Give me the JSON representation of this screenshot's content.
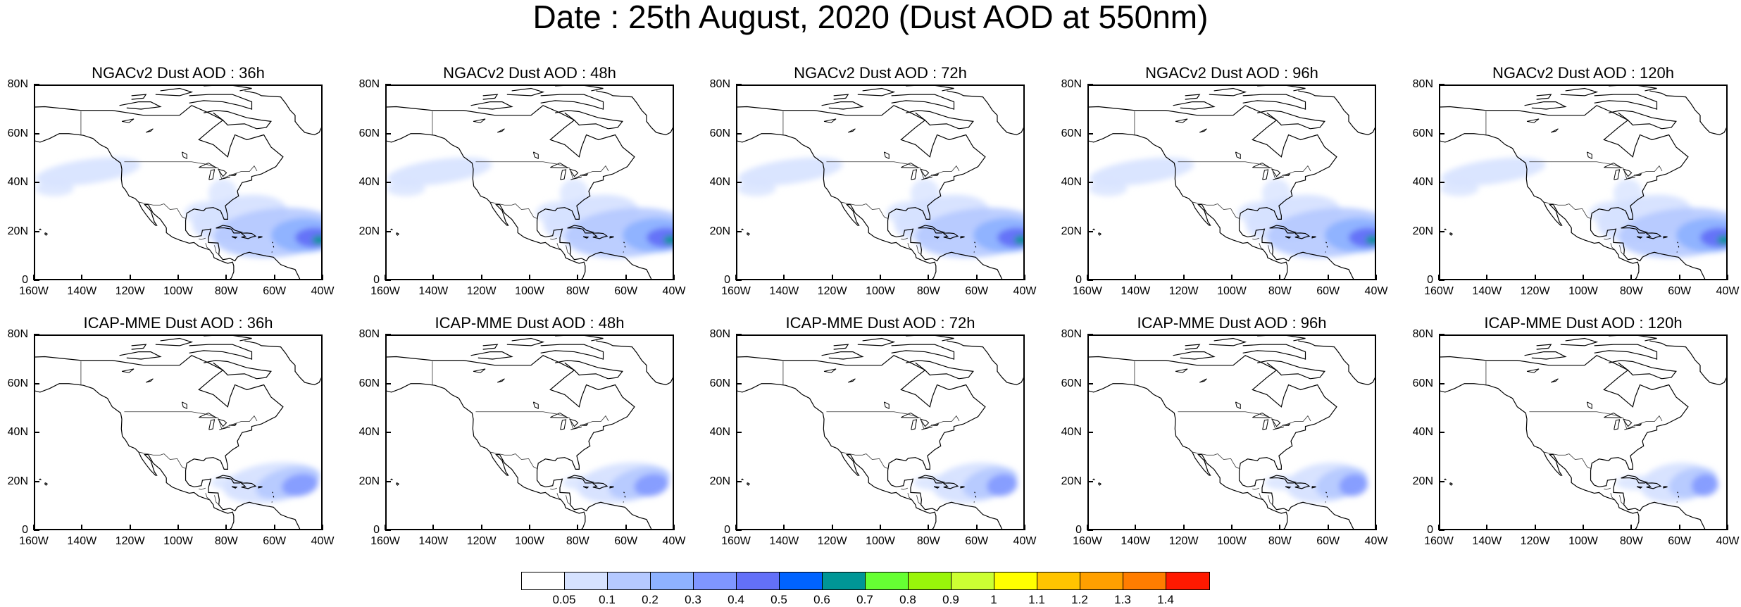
{
  "title": "Date : 25th August, 2020 (Dust AOD at 550nm)",
  "panels": [
    {
      "title": "NGACv2 Dust AOD : 36h",
      "model": "NGACv2",
      "lead": "36h",
      "intensity": 1.0,
      "spread": "broad"
    },
    {
      "title": "NGACv2 Dust AOD : 48h",
      "model": "NGACv2",
      "lead": "48h",
      "intensity": 1.0,
      "spread": "broad"
    },
    {
      "title": "NGACv2 Dust AOD : 72h",
      "model": "NGACv2",
      "lead": "72h",
      "intensity": 1.0,
      "spread": "broad"
    },
    {
      "title": "NGACv2 Dust AOD : 96h",
      "model": "NGACv2",
      "lead": "96h",
      "intensity": 1.0,
      "spread": "broad"
    },
    {
      "title": "NGACv2 Dust AOD : 120h",
      "model": "NGACv2",
      "lead": "120h",
      "intensity": 1.0,
      "spread": "broad"
    },
    {
      "title": "ICAP-MME Dust AOD : 36h",
      "model": "ICAP-MME",
      "lead": "36h",
      "intensity": 0.7,
      "spread": "narrow"
    },
    {
      "title": "ICAP-MME Dust AOD : 48h",
      "model": "ICAP-MME",
      "lead": "48h",
      "intensity": 0.65,
      "spread": "narrow"
    },
    {
      "title": "ICAP-MME Dust AOD : 72h",
      "model": "ICAP-MME",
      "lead": "72h",
      "intensity": 0.55,
      "spread": "narrow"
    },
    {
      "title": "ICAP-MME Dust AOD : 96h",
      "model": "ICAP-MME",
      "lead": "96h",
      "intensity": 0.5,
      "spread": "narrow"
    },
    {
      "title": "ICAP-MME Dust AOD : 120h",
      "model": "ICAP-MME",
      "lead": "120h",
      "intensity": 0.45,
      "spread": "narrow"
    }
  ],
  "map": {
    "lat_ticks": [
      "80N",
      "60N",
      "40N",
      "20N",
      "0"
    ],
    "lon_ticks": [
      "160W",
      "140W",
      "120W",
      "100W",
      "80W",
      "60W",
      "40W"
    ],
    "lat_range": [
      0,
      80
    ],
    "lon_range": [
      -160,
      -40
    ]
  },
  "colorbar": {
    "colors": [
      "#ffffff",
      "#d6e2ff",
      "#b5c9ff",
      "#8eb2ff",
      "#7f96ff",
      "#6370f8",
      "#0063ff",
      "#009696",
      "#66ff33",
      "#99f50a",
      "#ccff33",
      "#ffff00",
      "#ffc400",
      "#ffa000",
      "#ff7d00",
      "#ff1900"
    ],
    "labels": [
      "0.05",
      "0.1",
      "0.2",
      "0.3",
      "0.4",
      "0.5",
      "0.6",
      "0.7",
      "0.8",
      "0.9",
      "1",
      "1.1",
      "1.2",
      "1.3",
      "1.4"
    ]
  }
}
